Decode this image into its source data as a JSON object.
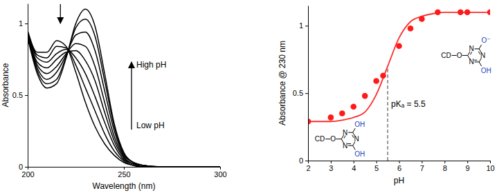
{
  "chart_data": [
    {
      "type": "line",
      "x_label": "Wavelength (nm)",
      "y_label": "Absorbance",
      "xlim": [
        200,
        300
      ],
      "xticks": [
        200,
        250,
        300
      ],
      "ylim": [
        0,
        1.14
      ],
      "yticks": [
        0,
        0.5,
        1
      ],
      "x": [
        200,
        205,
        210,
        215,
        220,
        225,
        230,
        235,
        240,
        245,
        250,
        255,
        260,
        270,
        280,
        300
      ],
      "series": [
        {
          "color": "#000000",
          "values": [
            0.95,
            0.8,
            0.8,
            0.88,
            0.84,
            0.66,
            0.45,
            0.28,
            0.16,
            0.08,
            0.03,
            0.01,
            0,
            0,
            0,
            0
          ]
        },
        {
          "color": "#000000",
          "values": [
            0.94,
            0.78,
            0.76,
            0.84,
            0.83,
            0.71,
            0.55,
            0.39,
            0.23,
            0.11,
            0.04,
            0.01,
            0,
            0,
            0,
            0
          ]
        },
        {
          "color": "#000000",
          "values": [
            0.94,
            0.76,
            0.73,
            0.79,
            0.82,
            0.76,
            0.65,
            0.49,
            0.31,
            0.15,
            0.05,
            0.02,
            0,
            0,
            0,
            0
          ]
        },
        {
          "color": "#000000",
          "values": [
            0.93,
            0.73,
            0.69,
            0.75,
            0.8,
            0.81,
            0.74,
            0.6,
            0.38,
            0.18,
            0.06,
            0.02,
            0,
            0,
            0,
            0
          ]
        },
        {
          "color": "#000000",
          "values": [
            0.92,
            0.71,
            0.65,
            0.7,
            0.79,
            0.86,
            0.84,
            0.7,
            0.45,
            0.21,
            0.07,
            0.02,
            0.01,
            0,
            0,
            0
          ]
        },
        {
          "color": "#000000",
          "values": [
            0.91,
            0.69,
            0.61,
            0.66,
            0.78,
            0.92,
            0.94,
            0.81,
            0.53,
            0.25,
            0.08,
            0.03,
            0.01,
            0,
            0,
            0
          ]
        },
        {
          "color": "#000000",
          "values": [
            0.91,
            0.67,
            0.58,
            0.61,
            0.77,
            0.97,
            1.03,
            0.91,
            0.6,
            0.28,
            0.09,
            0.03,
            0.01,
            0,
            0,
            0
          ]
        },
        {
          "color": "#000000",
          "values": [
            0.9,
            0.65,
            0.55,
            0.58,
            0.76,
            1.0,
            1.1,
            0.98,
            0.65,
            0.3,
            0.1,
            0.03,
            0.01,
            0,
            0,
            0
          ]
        }
      ],
      "annotations": [
        {
          "text": "High pH"
        },
        {
          "text": "Low pH"
        }
      ]
    },
    {
      "type": "scatter",
      "x_label": "pH",
      "y_label": "Absorbance @ 230 nm",
      "xlim": [
        2,
        10
      ],
      "xticks": [
        2,
        3,
        4,
        5,
        6,
        7,
        8,
        9,
        10
      ],
      "ylim": [
        0,
        1.15
      ],
      "yticks": [
        0,
        0.5,
        1
      ],
      "series": [
        {
          "type": "line",
          "color": "#ff2a2a",
          "x": [
            2,
            2.5,
            3,
            3.5,
            4,
            4.5,
            5,
            5.5,
            6,
            6.5,
            7,
            7.5,
            8,
            8.5,
            9,
            9.5,
            10
          ],
          "values": [
            0.29,
            0.29,
            0.29,
            0.3,
            0.32,
            0.36,
            0.49,
            0.7,
            0.91,
            1.03,
            1.07,
            1.09,
            1.1,
            1.1,
            1.1,
            1.1,
            1.1
          ]
        },
        {
          "type": "scatter",
          "color": "#ff1a1a",
          "marker": "circle",
          "x": [
            2,
            3,
            3.5,
            4,
            4.5,
            5,
            5.3,
            6,
            6.5,
            7,
            7.7,
            8.7,
            9,
            10
          ],
          "values": [
            0.29,
            0.32,
            0.35,
            0.4,
            0.48,
            0.59,
            0.63,
            0.85,
            0.98,
            1.05,
            1.1,
            1.1,
            1.1,
            1.1
          ]
        }
      ],
      "reference_line": {
        "x": 5.5,
        "label": "pKₐ = 5.5"
      },
      "structures": [
        {
          "substituent": "CD",
          "linker": "O",
          "ring_atom": "N",
          "groups": [
            "OH",
            "OH"
          ]
        },
        {
          "substituent": "CD",
          "linker": "O",
          "ring_atom": "N",
          "groups": [
            "O⁻",
            "OH"
          ]
        }
      ]
    }
  ]
}
